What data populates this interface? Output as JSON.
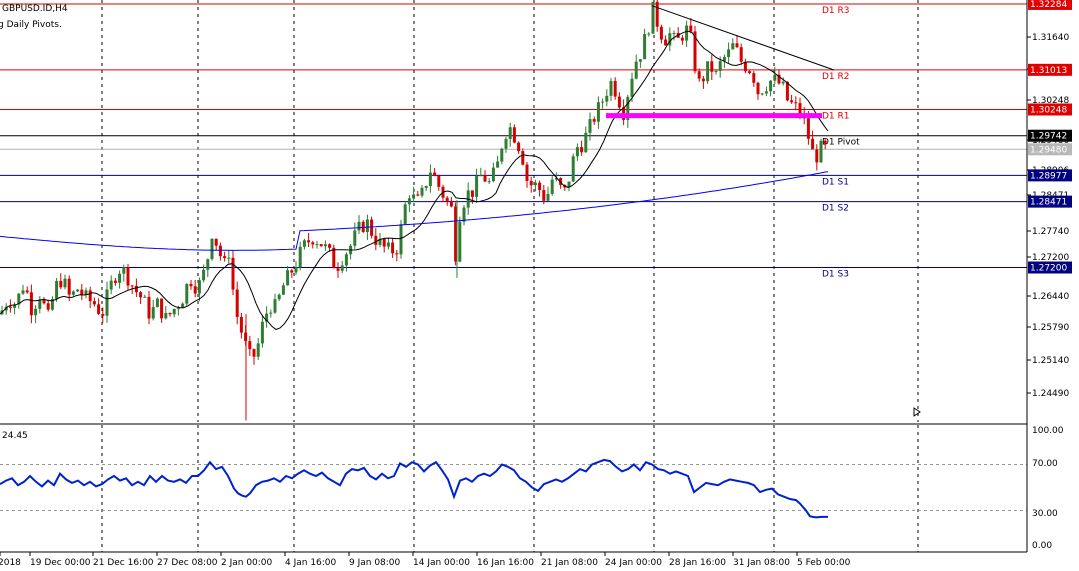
{
  "header": {
    "symbol_label": "GBPUSD.ID,H4",
    "indicator_label": "g Daily Pivots."
  },
  "rsi_label": "24.45",
  "colors": {
    "up": "#2e7d32",
    "down": "#d50000",
    "pivot_lines": "#e00000",
    "support_lines": "#000080",
    "ma_fast": "#000000",
    "ma_slow": "#0000ff",
    "rsi_line": "#0022cc",
    "highlight": "#ff00ff"
  },
  "chart_data": [
    {
      "type": "candlestick",
      "symbol": "GBPUSD.ID",
      "timeframe": "H4",
      "ylim": [
        1.2422,
        1.3236
      ],
      "y_ticks": [
        "1.31640",
        "1.30950",
        "1.30248",
        "1.29480",
        "1.28906",
        "1.28471",
        "1.27740",
        "1.27200",
        "1.26440",
        "1.25790",
        "1.25140",
        "1.24490"
      ],
      "x_ticks": [
        "2018",
        "19 Dec 00:00",
        "21 Dec 16:00",
        "27 Dec 08:00",
        "2 Jan 00:00",
        "4 Jan 16:00",
        "9 Jan 08:00",
        "14 Jan 00:00",
        "16 Jan 16:00",
        "21 Jan 08:00",
        "24 Jan 00:00",
        "28 Jan 16:00",
        "31 Jan 08:00",
        "5 Feb 00:00"
      ],
      "pivot_levels": [
        {
          "name": "D1 R3",
          "value": 1.32284,
          "label": "1.32284",
          "kind": "resistance"
        },
        {
          "name": "D1 R2",
          "value": 1.31013,
          "label": "1.31013",
          "kind": "resistance"
        },
        {
          "name": "D1 R1",
          "value": 1.30248,
          "label": "1.30248",
          "kind": "resistance"
        },
        {
          "name": "D1 Pivot",
          "value": 1.29742,
          "label": "1.29742",
          "kind": "pivot"
        },
        {
          "name": "D1 S1",
          "value": 1.28977,
          "label": "1.28977",
          "kind": "support"
        },
        {
          "name": "D1 S2",
          "value": 1.28471,
          "label": "1.28471",
          "kind": "support"
        },
        {
          "name": "D1 S3",
          "value": 1.272,
          "label": "1.27200",
          "kind": "support"
        }
      ],
      "current_price": {
        "value": 1.2948,
        "label": "1.29480"
      },
      "trendline": [
        [
          1.3225,
          1.3101
        ]
      ],
      "highlight_zone": 1.3013,
      "close_path": [
        [
          0,
          1.263
        ],
        [
          8,
          1.266
        ],
        [
          16,
          1.265
        ],
        [
          24,
          1.269
        ],
        [
          32,
          1.264
        ],
        [
          40,
          1.267
        ],
        [
          48,
          1.262
        ],
        [
          55,
          1.268
        ],
        [
          62,
          1.27
        ],
        [
          70,
          1.266
        ],
        [
          78,
          1.268
        ],
        [
          86,
          1.266
        ],
        [
          95,
          1.265
        ],
        [
          102,
          1.263
        ],
        [
          110,
          1.268
        ],
        [
          118,
          1.272
        ],
        [
          126,
          1.271
        ],
        [
          134,
          1.268
        ],
        [
          142,
          1.266
        ],
        [
          150,
          1.263
        ],
        [
          158,
          1.265
        ],
        [
          166,
          1.262
        ],
        [
          174,
          1.264
        ],
        [
          182,
          1.266
        ],
        [
          190,
          1.27
        ],
        [
          198,
          1.268
        ],
        [
          206,
          1.272
        ],
        [
          212,
          1.279
        ],
        [
          218,
          1.276
        ],
        [
          224,
          1.272
        ],
        [
          230,
          1.276
        ],
        [
          234,
          1.265
        ],
        [
          238,
          1.262
        ],
        [
          244,
          1.258
        ],
        [
          248,
          1.255
        ],
        [
          252,
          1.254
        ],
        [
          258,
          1.257
        ],
        [
          264,
          1.262
        ],
        [
          270,
          1.265
        ],
        [
          276,
          1.264
        ],
        [
          282,
          1.268
        ],
        [
          288,
          1.27
        ],
        [
          296,
          1.273
        ],
        [
          304,
          1.276
        ],
        [
          312,
          1.278
        ],
        [
          320,
          1.277
        ],
        [
          328,
          1.275
        ],
        [
          336,
          1.272
        ],
        [
          342,
          1.274
        ],
        [
          350,
          1.276
        ],
        [
          358,
          1.279
        ],
        [
          366,
          1.281
        ],
        [
          374,
          1.278
        ],
        [
          382,
          1.276
        ],
        [
          390,
          1.275
        ],
        [
          398,
          1.276
        ],
        [
          404,
          1.283
        ],
        [
          410,
          1.287
        ],
        [
          416,
          1.284
        ],
        [
          422,
          1.286
        ],
        [
          430,
          1.291
        ],
        [
          438,
          1.288
        ],
        [
          446,
          1.285
        ],
        [
          452,
          1.283
        ],
        [
          456,
          1.274
        ],
        [
          460,
          1.283
        ],
        [
          466,
          1.286
        ],
        [
          474,
          1.287
        ],
        [
          482,
          1.29
        ],
        [
          490,
          1.288
        ],
        [
          498,
          1.292
        ],
        [
          504,
          1.298
        ],
        [
          510,
          1.299
        ],
        [
          516,
          1.297
        ],
        [
          522,
          1.294
        ],
        [
          528,
          1.288
        ],
        [
          534,
          1.288
        ],
        [
          540,
          1.287
        ],
        [
          546,
          1.285
        ],
        [
          552,
          1.289
        ],
        [
          558,
          1.288
        ],
        [
          564,
          1.286
        ],
        [
          570,
          1.29
        ],
        [
          576,
          1.295
        ],
        [
          582,
          1.296
        ],
        [
          588,
          1.298
        ],
        [
          594,
          1.301
        ],
        [
          600,
          1.303
        ],
        [
          606,
          1.306
        ],
        [
          612,
          1.308
        ],
        [
          618,
          1.305
        ],
        [
          624,
          1.302
        ],
        [
          630,
          1.308
        ],
        [
          636,
          1.312
        ],
        [
          642,
          1.314
        ],
        [
          648,
          1.318
        ],
        [
          652,
          1.322
        ],
        [
          658,
          1.319
        ],
        [
          664,
          1.316
        ],
        [
          670,
          1.317
        ],
        [
          676,
          1.315
        ],
        [
          682,
          1.317
        ],
        [
          688,
          1.318
        ],
        [
          692,
          1.315
        ],
        [
          698,
          1.307
        ],
        [
          704,
          1.309
        ],
        [
          710,
          1.311
        ],
        [
          716,
          1.309
        ],
        [
          722,
          1.312
        ],
        [
          728,
          1.313
        ],
        [
          734,
          1.315
        ],
        [
          740,
          1.312
        ],
        [
          746,
          1.311
        ],
        [
          752,
          1.31
        ],
        [
          758,
          1.306
        ],
        [
          764,
          1.307
        ],
        [
          770,
          1.308
        ],
        [
          776,
          1.308
        ],
        [
          782,
          1.307
        ],
        [
          788,
          1.304
        ],
        [
          794,
          1.303
        ],
        [
          800,
          1.302
        ],
        [
          806,
          1.299
        ],
        [
          810,
          1.296
        ],
        [
          814,
          1.293
        ],
        [
          818,
          1.294
        ],
        [
          822,
          1.295
        ],
        [
          828,
          1.2948
        ]
      ]
    },
    {
      "type": "line",
      "indicator": "RSI",
      "value_label": "24.45",
      "ylim": [
        0,
        100
      ],
      "y_ticks": [
        "100.00",
        "70.00",
        "30.00",
        "0.00"
      ],
      "levels": [
        70,
        30
      ],
      "values": [
        [
          0,
          53
        ],
        [
          6,
          56
        ],
        [
          12,
          58
        ],
        [
          18,
          52
        ],
        [
          24,
          55
        ],
        [
          30,
          60
        ],
        [
          36,
          55
        ],
        [
          42,
          51
        ],
        [
          48,
          56
        ],
        [
          54,
          52
        ],
        [
          60,
          62
        ],
        [
          66,
          57
        ],
        [
          72,
          54
        ],
        [
          78,
          56
        ],
        [
          84,
          52
        ],
        [
          90,
          55
        ],
        [
          96,
          51
        ],
        [
          102,
          53
        ],
        [
          108,
          57
        ],
        [
          114,
          60
        ],
        [
          120,
          56
        ],
        [
          126,
          58
        ],
        [
          132,
          52
        ],
        [
          138,
          55
        ],
        [
          144,
          52
        ],
        [
          150,
          60
        ],
        [
          156,
          55
        ],
        [
          162,
          60
        ],
        [
          168,
          56
        ],
        [
          174,
          55
        ],
        [
          180,
          57
        ],
        [
          186,
          54
        ],
        [
          192,
          60
        ],
        [
          198,
          60
        ],
        [
          204,
          65
        ],
        [
          210,
          72
        ],
        [
          216,
          66
        ],
        [
          222,
          68
        ],
        [
          228,
          60
        ],
        [
          234,
          49
        ],
        [
          238,
          45
        ],
        [
          242,
          43
        ],
        [
          246,
          42
        ],
        [
          250,
          45
        ],
        [
          256,
          52
        ],
        [
          262,
          55
        ],
        [
          268,
          56
        ],
        [
          274,
          58
        ],
        [
          280,
          55
        ],
        [
          286,
          60
        ],
        [
          292,
          58
        ],
        [
          298,
          62
        ],
        [
          304,
          65
        ],
        [
          310,
          62
        ],
        [
          316,
          60
        ],
        [
          322,
          63
        ],
        [
          328,
          58
        ],
        [
          334,
          55
        ],
        [
          340,
          52
        ],
        [
          346,
          62
        ],
        [
          352,
          66
        ],
        [
          358,
          65
        ],
        [
          364,
          67
        ],
        [
          370,
          60
        ],
        [
          376,
          57
        ],
        [
          382,
          62
        ],
        [
          388,
          58
        ],
        [
          394,
          60
        ],
        [
          400,
          71
        ],
        [
          406,
          68
        ],
        [
          412,
          72
        ],
        [
          418,
          70
        ],
        [
          424,
          64
        ],
        [
          430,
          69
        ],
        [
          436,
          72
        ],
        [
          442,
          65
        ],
        [
          448,
          57
        ],
        [
          454,
          42
        ],
        [
          460,
          56
        ],
        [
          466,
          58
        ],
        [
          472,
          55
        ],
        [
          478,
          60
        ],
        [
          484,
          62
        ],
        [
          490,
          60
        ],
        [
          496,
          64
        ],
        [
          502,
          70
        ],
        [
          508,
          68
        ],
        [
          514,
          65
        ],
        [
          520,
          58
        ],
        [
          526,
          55
        ],
        [
          532,
          50
        ],
        [
          538,
          47
        ],
        [
          544,
          53
        ],
        [
          550,
          55
        ],
        [
          556,
          57
        ],
        [
          562,
          55
        ],
        [
          568,
          58
        ],
        [
          574,
          62
        ],
        [
          580,
          66
        ],
        [
          586,
          64
        ],
        [
          592,
          70
        ],
        [
          598,
          72
        ],
        [
          604,
          74
        ],
        [
          610,
          73
        ],
        [
          616,
          68
        ],
        [
          622,
          64
        ],
        [
          628,
          66
        ],
        [
          634,
          70
        ],
        [
          640,
          65
        ],
        [
          646,
          72
        ],
        [
          652,
          70
        ],
        [
          658,
          66
        ],
        [
          664,
          65
        ],
        [
          670,
          62
        ],
        [
          676,
          64
        ],
        [
          682,
          62
        ],
        [
          688,
          60
        ],
        [
          694,
          46
        ],
        [
          700,
          50
        ],
        [
          706,
          54
        ],
        [
          712,
          53
        ],
        [
          718,
          52
        ],
        [
          724,
          55
        ],
        [
          730,
          57
        ],
        [
          736,
          56
        ],
        [
          742,
          55
        ],
        [
          748,
          54
        ],
        [
          754,
          52
        ],
        [
          760,
          46
        ],
        [
          766,
          48
        ],
        [
          772,
          49
        ],
        [
          778,
          44
        ],
        [
          784,
          42
        ],
        [
          790,
          40
        ],
        [
          796,
          39
        ],
        [
          800,
          36
        ],
        [
          806,
          30
        ],
        [
          810,
          25
        ],
        [
          816,
          24
        ],
        [
          822,
          24.45
        ],
        [
          828,
          24.45
        ]
      ]
    }
  ]
}
